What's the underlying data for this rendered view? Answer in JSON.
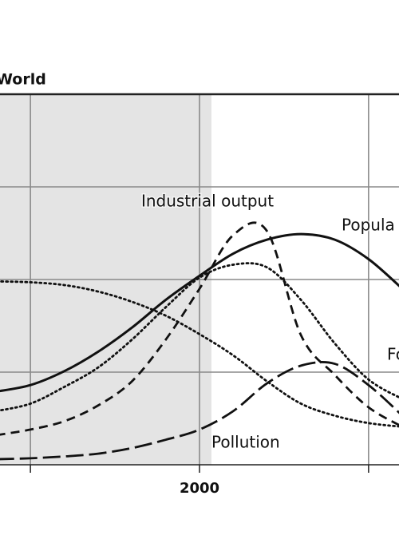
{
  "chart_data": {
    "type": "line",
    "title": "World",
    "x": [
      1940,
      1950,
      1960,
      1970,
      1980,
      1990,
      2000,
      2010,
      2020,
      2030,
      2040,
      2050,
      2060
    ],
    "xlim": [
      1941,
      2059
    ],
    "xticks": [
      {
        "value": 1950,
        "label": null
      },
      2000,
      {
        "value": 2050,
        "label": null
      }
    ],
    "ylim": [
      0,
      4
    ],
    "yticks": [
      {
        "value": 1,
        "label": null
      },
      {
        "value": 2,
        "label": null
      },
      {
        "value": 3,
        "label": null
      }
    ],
    "grid": true,
    "series": [
      {
        "name": "Popula",
        "color": "#111111",
        "style": "solid",
        "values": [
          0.79,
          0.86,
          1.01,
          1.22,
          1.48,
          1.78,
          2.04,
          2.28,
          2.43,
          2.49,
          2.43,
          2.22,
          1.9
        ]
      },
      {
        "name": "Industrial output",
        "color": "#111111",
        "style": "dashed",
        "values": [
          0.32,
          0.38,
          0.47,
          0.64,
          0.9,
          1.35,
          1.9,
          2.48,
          2.52,
          1.4,
          0.97,
          0.62,
          0.41
        ]
      },
      {
        "name": "Fo",
        "color": "#111111",
        "style": "dotted",
        "values": [
          0.58,
          0.66,
          0.84,
          1.05,
          1.35,
          1.7,
          2.02,
          2.16,
          2.13,
          1.78,
          1.31,
          0.92,
          0.71
        ]
      },
      {
        "color": "#111111",
        "style": "dotted",
        "values": [
          1.98,
          1.97,
          1.94,
          1.87,
          1.76,
          1.61,
          1.41,
          1.18,
          0.9,
          0.66,
          0.53,
          0.45,
          0.41
        ]
      },
      {
        "name": "Pollution",
        "color": "#111111",
        "style": "longdash",
        "values": [
          0.06,
          0.07,
          0.09,
          0.12,
          0.18,
          0.27,
          0.38,
          0.58,
          0.88,
          1.07,
          1.09,
          0.86,
          0.53
        ]
      }
    ]
  }
}
